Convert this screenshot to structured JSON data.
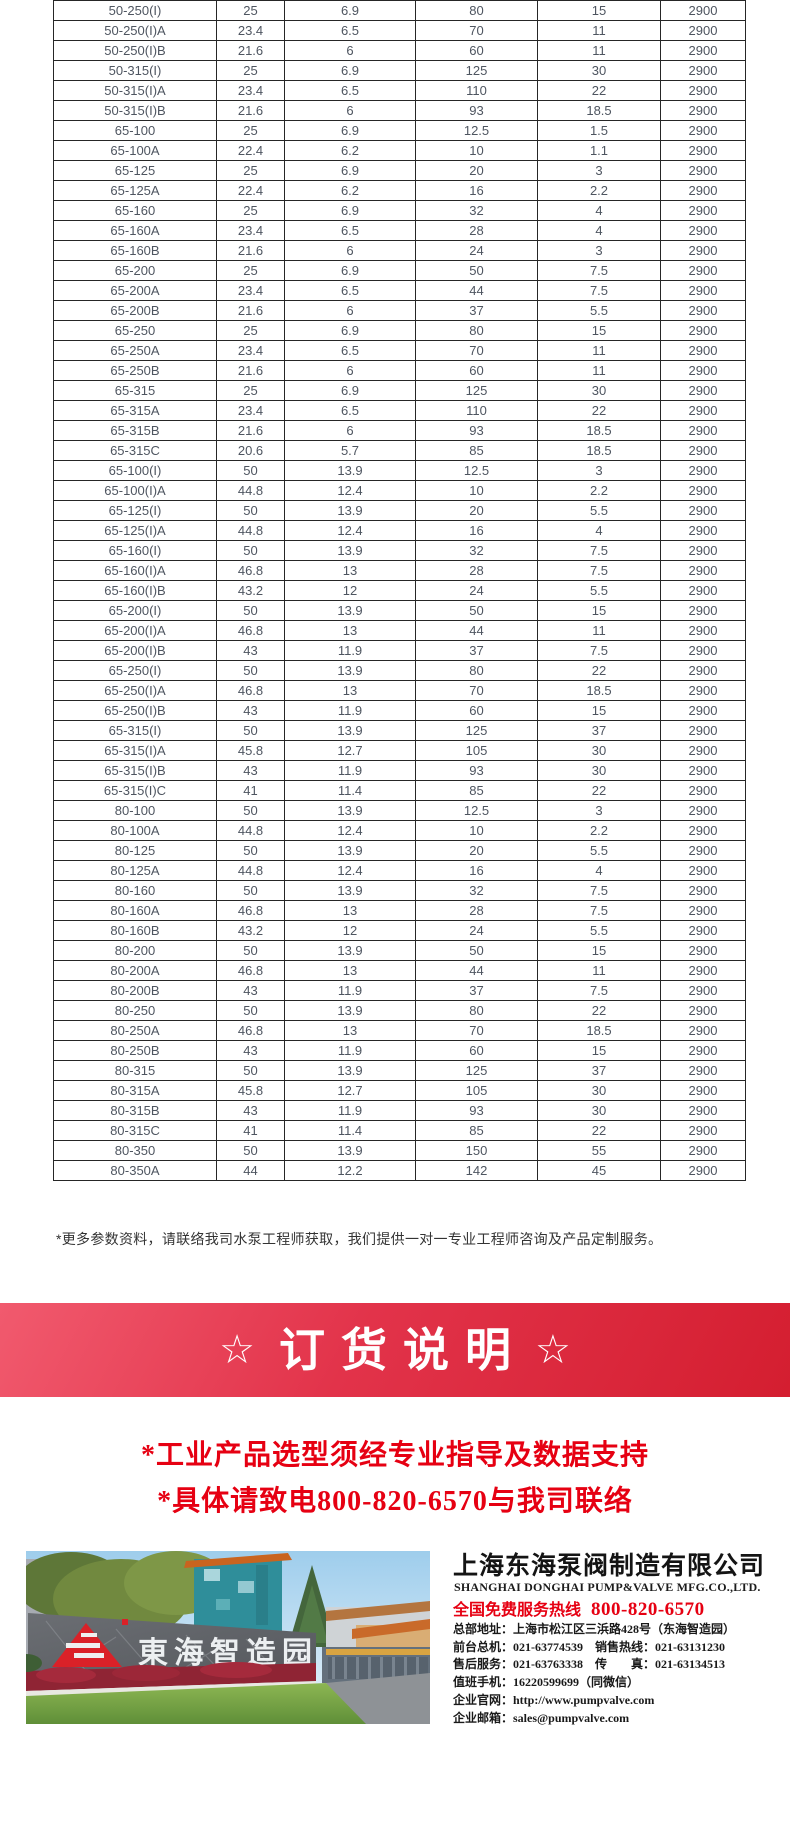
{
  "table": {
    "rows": [
      [
        "50-250(I)",
        "25",
        "6.9",
        "80",
        "15",
        "2900"
      ],
      [
        "50-250(I)A",
        "23.4",
        "6.5",
        "70",
        "11",
        "2900"
      ],
      [
        "50-250(I)B",
        "21.6",
        "6",
        "60",
        "11",
        "2900"
      ],
      [
        "50-315(I)",
        "25",
        "6.9",
        "125",
        "30",
        "2900"
      ],
      [
        "50-315(I)A",
        "23.4",
        "6.5",
        "110",
        "22",
        "2900"
      ],
      [
        "50-315(I)B",
        "21.6",
        "6",
        "93",
        "18.5",
        "2900"
      ],
      [
        "65-100",
        "25",
        "6.9",
        "12.5",
        "1.5",
        "2900"
      ],
      [
        "65-100A",
        "22.4",
        "6.2",
        "10",
        "1.1",
        "2900"
      ],
      [
        "65-125",
        "25",
        "6.9",
        "20",
        "3",
        "2900"
      ],
      [
        "65-125A",
        "22.4",
        "6.2",
        "16",
        "2.2",
        "2900"
      ],
      [
        "65-160",
        "25",
        "6.9",
        "32",
        "4",
        "2900"
      ],
      [
        "65-160A",
        "23.4",
        "6.5",
        "28",
        "4",
        "2900"
      ],
      [
        "65-160B",
        "21.6",
        "6",
        "24",
        "3",
        "2900"
      ],
      [
        "65-200",
        "25",
        "6.9",
        "50",
        "7.5",
        "2900"
      ],
      [
        "65-200A",
        "23.4",
        "6.5",
        "44",
        "7.5",
        "2900"
      ],
      [
        "65-200B",
        "21.6",
        "6",
        "37",
        "5.5",
        "2900"
      ],
      [
        "65-250",
        "25",
        "6.9",
        "80",
        "15",
        "2900"
      ],
      [
        "65-250A",
        "23.4",
        "6.5",
        "70",
        "11",
        "2900"
      ],
      [
        "65-250B",
        "21.6",
        "6",
        "60",
        "11",
        "2900"
      ],
      [
        "65-315",
        "25",
        "6.9",
        "125",
        "30",
        "2900"
      ],
      [
        "65-315A",
        "23.4",
        "6.5",
        "110",
        "22",
        "2900"
      ],
      [
        "65-315B",
        "21.6",
        "6",
        "93",
        "18.5",
        "2900"
      ],
      [
        "65-315C",
        "20.6",
        "5.7",
        "85",
        "18.5",
        "2900"
      ],
      [
        "65-100(I)",
        "50",
        "13.9",
        "12.5",
        "3",
        "2900"
      ],
      [
        "65-100(I)A",
        "44.8",
        "12.4",
        "10",
        "2.2",
        "2900"
      ],
      [
        "65-125(I)",
        "50",
        "13.9",
        "20",
        "5.5",
        "2900"
      ],
      [
        "65-125(I)A",
        "44.8",
        "12.4",
        "16",
        "4",
        "2900"
      ],
      [
        "65-160(I)",
        "50",
        "13.9",
        "32",
        "7.5",
        "2900"
      ],
      [
        "65-160(I)A",
        "46.8",
        "13",
        "28",
        "7.5",
        "2900"
      ],
      [
        "65-160(I)B",
        "43.2",
        "12",
        "24",
        "5.5",
        "2900"
      ],
      [
        "65-200(I)",
        "50",
        "13.9",
        "50",
        "15",
        "2900"
      ],
      [
        "65-200(I)A",
        "46.8",
        "13",
        "44",
        "11",
        "2900"
      ],
      [
        "65-200(I)B",
        "43",
        "11.9",
        "37",
        "7.5",
        "2900"
      ],
      [
        "65-250(I)",
        "50",
        "13.9",
        "80",
        "22",
        "2900"
      ],
      [
        "65-250(I)A",
        "46.8",
        "13",
        "70",
        "18.5",
        "2900"
      ],
      [
        "65-250(I)B",
        "43",
        "11.9",
        "60",
        "15",
        "2900"
      ],
      [
        "65-315(I)",
        "50",
        "13.9",
        "125",
        "37",
        "2900"
      ],
      [
        "65-315(I)A",
        "45.8",
        "12.7",
        "105",
        "30",
        "2900"
      ],
      [
        "65-315(I)B",
        "43",
        "11.9",
        "93",
        "30",
        "2900"
      ],
      [
        "65-315(I)C",
        "41",
        "11.4",
        "85",
        "22",
        "2900"
      ],
      [
        "80-100",
        "50",
        "13.9",
        "12.5",
        "3",
        "2900"
      ],
      [
        "80-100A",
        "44.8",
        "12.4",
        "10",
        "2.2",
        "2900"
      ],
      [
        "80-125",
        "50",
        "13.9",
        "20",
        "5.5",
        "2900"
      ],
      [
        "80-125A",
        "44.8",
        "12.4",
        "16",
        "4",
        "2900"
      ],
      [
        "80-160",
        "50",
        "13.9",
        "32",
        "7.5",
        "2900"
      ],
      [
        "80-160A",
        "46.8",
        "13",
        "28",
        "7.5",
        "2900"
      ],
      [
        "80-160B",
        "43.2",
        "12",
        "24",
        "5.5",
        "2900"
      ],
      [
        "80-200",
        "50",
        "13.9",
        "50",
        "15",
        "2900"
      ],
      [
        "80-200A",
        "46.8",
        "13",
        "44",
        "11",
        "2900"
      ],
      [
        "80-200B",
        "43",
        "11.9",
        "37",
        "7.5",
        "2900"
      ],
      [
        "80-250",
        "50",
        "13.9",
        "80",
        "22",
        "2900"
      ],
      [
        "80-250A",
        "46.8",
        "13",
        "70",
        "18.5",
        "2900"
      ],
      [
        "80-250B",
        "43",
        "11.9",
        "60",
        "15",
        "2900"
      ],
      [
        "80-315",
        "50",
        "13.9",
        "125",
        "37",
        "2900"
      ],
      [
        "80-315A",
        "45.8",
        "12.7",
        "105",
        "30",
        "2900"
      ],
      [
        "80-315B",
        "43",
        "11.9",
        "93",
        "30",
        "2900"
      ],
      [
        "80-315C",
        "41",
        "11.4",
        "85",
        "22",
        "2900"
      ],
      [
        "80-350",
        "50",
        "13.9",
        "150",
        "55",
        "2900"
      ],
      [
        "80-350A",
        "44",
        "12.2",
        "142",
        "45",
        "2900"
      ]
    ]
  },
  "note": "*更多参数资料，请联络我司水泵工程师获取，我们提供一对一专业工程师咨询及产品定制服务。",
  "banner": {
    "star_left": "☆",
    "title": "订货说明",
    "star_right": "☆"
  },
  "red_notes": [
    "*工业产品选型须经专业指导及数据支持",
    "*具体请致电800-820-6570与我司联络"
  ],
  "company": {
    "name_cn": "上海东海泵阀制造有限公司",
    "name_en": "SHANGHAI DONGHAI PUMP&VALVE MFG.CO.,LTD.",
    "hotline_label": "全国免费服务热线",
    "hotline_number": "800-820-6570",
    "contact_lines": [
      "总部地址：上海市松江区三浜路428号（东海智造园）",
      "前台总机：021-63774539　销售热线：021-63131230",
      "售后服务：021-63763338　传　　真：021-63134513",
      "值班手机：16220599699（同微信）",
      "企业官网：http://www.pumpvalve.com",
      "企业邮箱：sales@pumpvalve.com"
    ]
  },
  "photo": {
    "sign_text": "東海智造园"
  },
  "colors": {
    "accent_red": "#e60012",
    "banner_gradient_from": "#f15a6e",
    "banner_gradient_to": "#d41e30",
    "table_text": "#4e5560"
  }
}
